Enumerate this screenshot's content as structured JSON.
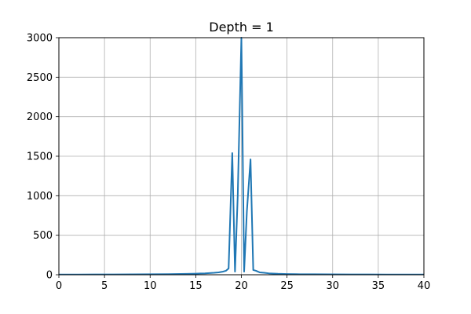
{
  "chart_data": {
    "type": "line",
    "title": "Depth = 1",
    "xlabel": "",
    "ylabel": "",
    "xlim": [
      0,
      40
    ],
    "ylim": [
      0,
      3000
    ],
    "xticks": [
      0,
      5,
      10,
      15,
      20,
      25,
      30,
      35,
      40
    ],
    "yticks": [
      0,
      500,
      1000,
      1500,
      2000,
      2500,
      3000
    ],
    "grid": true,
    "series": [
      {
        "color": "#1f77b4",
        "x": [
          0,
          2,
          4,
          6,
          8,
          10,
          12,
          14,
          15,
          16,
          17,
          17.5,
          18,
          18.3,
          18.6,
          19.0,
          19.3,
          19.6,
          20.0,
          20.3,
          20.6,
          21.0,
          21.3,
          21.6,
          22,
          22.5,
          23,
          24,
          25,
          26,
          28,
          30,
          32,
          34,
          36,
          38,
          40
        ],
        "y": [
          3,
          3,
          4,
          4,
          5,
          6,
          8,
          11,
          14,
          18,
          25,
          30,
          40,
          50,
          80,
          1540,
          40,
          1000,
          3000,
          40,
          800,
          1460,
          60,
          50,
          30,
          25,
          18,
          12,
          9,
          7,
          6,
          5,
          4,
          4,
          3,
          3,
          3
        ]
      }
    ]
  }
}
